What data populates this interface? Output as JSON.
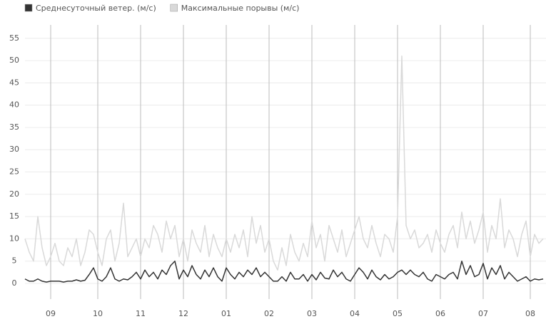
{
  "chart_data": {
    "type": "line",
    "categories": [
      null,
      null,
      null,
      null,
      null,
      null,
      "09",
      null,
      null,
      null,
      null,
      null,
      null,
      null,
      null,
      null,
      null,
      "10",
      null,
      null,
      null,
      null,
      null,
      null,
      null,
      null,
      null,
      "11",
      null,
      null,
      null,
      null,
      null,
      null,
      null,
      null,
      null,
      "12",
      null,
      null,
      null,
      null,
      null,
      null,
      null,
      null,
      null,
      "01",
      null,
      null,
      null,
      null,
      null,
      null,
      null,
      null,
      null,
      "02",
      null,
      null,
      null,
      null,
      null,
      null,
      null,
      null,
      null,
      "03",
      null,
      null,
      null,
      null,
      null,
      null,
      null,
      null,
      null,
      "04",
      null,
      null,
      null,
      null,
      null,
      null,
      null,
      null,
      null,
      "05",
      null,
      null,
      null,
      null,
      null,
      null,
      null,
      null,
      null,
      "06",
      null,
      null,
      null,
      null,
      null,
      null,
      null,
      null,
      null,
      "07",
      null,
      null,
      null,
      null,
      null,
      null,
      null,
      null,
      null,
      null,
      "08",
      null,
      null,
      null
    ],
    "series": [
      {
        "name": "Среднесуточный ветер. (м/с)",
        "color": "#333333",
        "values": [
          1,
          0.5,
          0.5,
          1,
          0.5,
          0.3,
          0.5,
          0.5,
          0.5,
          0.3,
          0.5,
          0.5,
          0.8,
          0.5,
          0.7,
          2,
          3.5,
          1,
          0.5,
          1.5,
          3.5,
          1,
          0.5,
          1,
          0.8,
          1.5,
          2.5,
          1,
          3,
          1.5,
          2.5,
          1,
          3,
          2,
          4,
          5,
          1,
          3,
          1.5,
          4,
          2,
          1,
          3,
          1.5,
          3.5,
          1.5,
          0.5,
          3.5,
          2,
          1,
          2.5,
          1.5,
          3,
          2,
          3.5,
          1.5,
          2.5,
          1.5,
          0.5,
          0.5,
          1.5,
          0.5,
          2.5,
          1,
          1,
          2,
          0.5,
          2,
          0.8,
          2.5,
          1.2,
          1,
          3,
          1.5,
          2.5,
          1,
          0.5,
          2,
          3.5,
          2.5,
          1,
          3,
          1.5,
          0.8,
          2,
          1,
          1.5,
          2.5,
          3,
          2,
          3,
          2,
          1.5,
          2.5,
          1,
          0.5,
          2,
          1.5,
          1,
          2,
          2.5,
          1,
          5,
          2,
          4,
          1.5,
          2,
          4.5,
          1,
          3.5,
          2,
          4,
          1,
          2.5,
          1.5,
          0.5,
          1,
          1.5,
          0.5,
          1,
          0.8,
          1
        ]
      },
      {
        "name": "Максимальные порывы (м/с)",
        "color": "#d9d9d9",
        "values": [
          10,
          7,
          5,
          15,
          8,
          4,
          6,
          9,
          5,
          4,
          8,
          6,
          10,
          4,
          7,
          12,
          11,
          7,
          4,
          10,
          12,
          5,
          9,
          18,
          6,
          8,
          10,
          6,
          10,
          8,
          13,
          11,
          7,
          14,
          10,
          13,
          6,
          10,
          5,
          12,
          9,
          7,
          13,
          6,
          11,
          8,
          6,
          10,
          7,
          11,
          8,
          12,
          6,
          15,
          9,
          13,
          7,
          10,
          5,
          3,
          8,
          4,
          11,
          7,
          5,
          9,
          6,
          14,
          8,
          11,
          5,
          13,
          10,
          7,
          12,
          6,
          9,
          12,
          15,
          10,
          8,
          13,
          9,
          6,
          11,
          10,
          7,
          15,
          51,
          13,
          10,
          12,
          8,
          9,
          11,
          7,
          12,
          9,
          7,
          11,
          13,
          8,
          16,
          10,
          14,
          9,
          12,
          16,
          7,
          13,
          10,
          19,
          8,
          12,
          10,
          6,
          11,
          14,
          6,
          11,
          9,
          10
        ]
      }
    ],
    "ylim": [
      0,
      58
    ],
    "yticks": [
      0,
      5,
      10,
      15,
      20,
      25,
      30,
      35,
      40,
      45,
      50,
      55
    ],
    "grid": true
  }
}
